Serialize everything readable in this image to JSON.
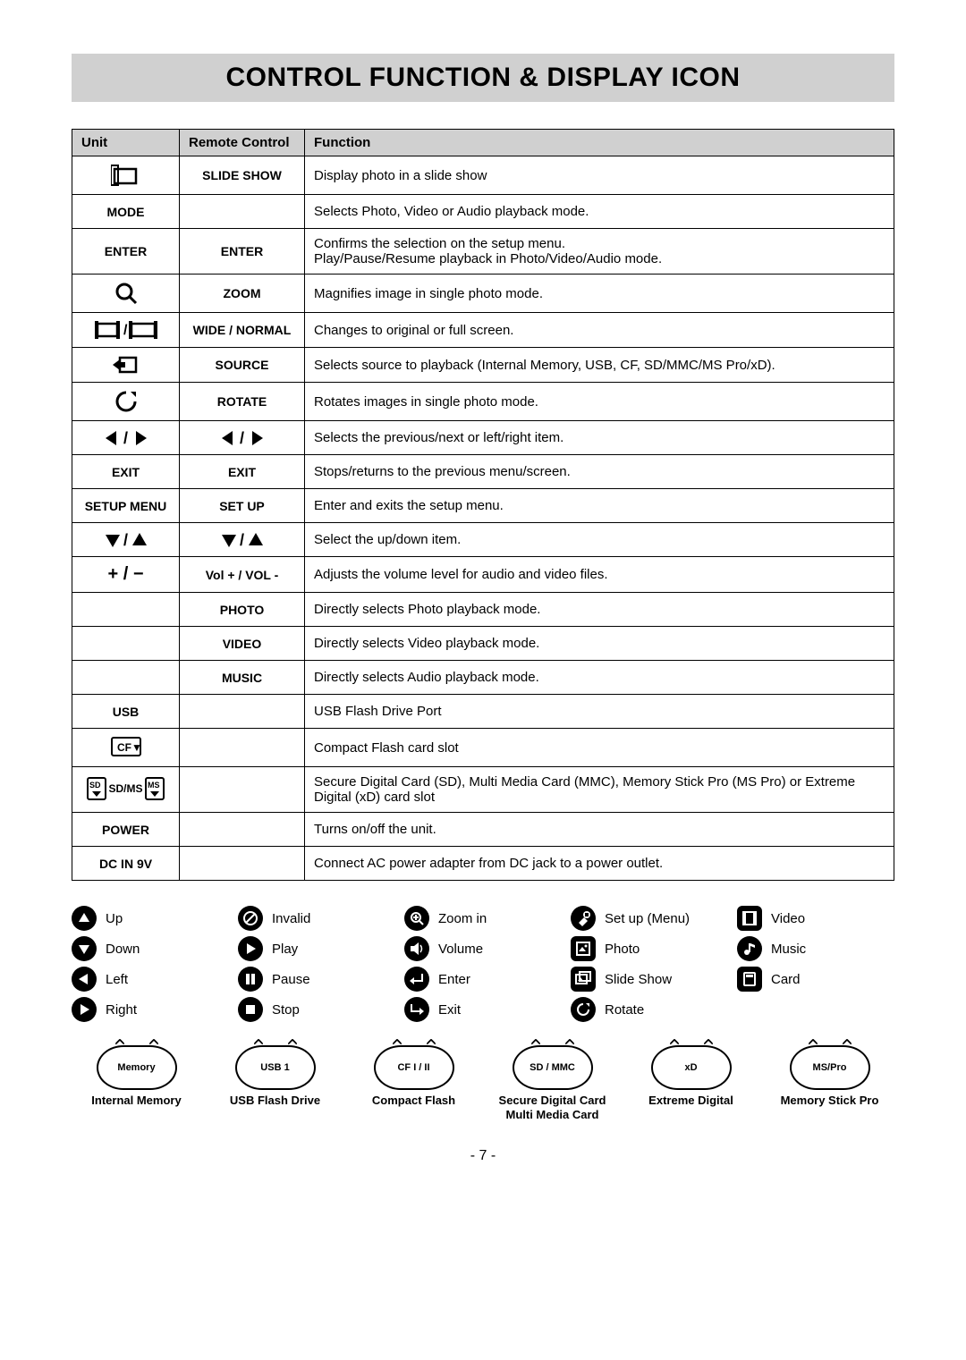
{
  "title": "CONTROL FUNCTION & DISPLAY ICON",
  "table": {
    "headers": [
      "Unit",
      "Remote Control",
      "Function"
    ],
    "rows": [
      {
        "unit_icon": "slideshow",
        "unit": "",
        "remote": "SLIDE SHOW",
        "fn": "Display photo in a slide show"
      },
      {
        "unit": "MODE",
        "remote": "",
        "fn": "Selects Photo, Video or Audio playback mode."
      },
      {
        "unit": "ENTER",
        "remote": "ENTER",
        "fn": "Confirms the selection on the setup menu.\nPlay/Pause/Resume playback in Photo/Video/Audio mode."
      },
      {
        "unit_icon": "magnify",
        "unit": "",
        "remote": "ZOOM",
        "fn": "Magnifies image in single photo mode."
      },
      {
        "unit_icon": "widenormal",
        "unit": "",
        "remote": "WIDE / NORMAL",
        "fn": "Changes to original or full screen."
      },
      {
        "unit_icon": "source",
        "unit": "",
        "remote": "SOURCE",
        "fn": "Selects source to playback (Internal Memory, USB, CF, SD/MMC/MS Pro/xD)."
      },
      {
        "unit_icon": "rotate",
        "unit": "",
        "remote": "ROTATE",
        "fn": "Rotates images in single photo mode."
      },
      {
        "unit_icon": "lr",
        "unit": "",
        "remote_icon": "lr",
        "remote": "",
        "fn": "Selects the previous/next or left/right item."
      },
      {
        "unit": "EXIT",
        "remote": "EXIT",
        "fn": "Stops/returns to the previous menu/screen."
      },
      {
        "unit": "SETUP MENU",
        "remote": "SET UP",
        "fn": "Enter and exits the setup menu."
      },
      {
        "unit_icon": "ud",
        "unit": "",
        "remote_icon": "ud",
        "remote": "",
        "fn": "Select the up/down item."
      },
      {
        "unit_icon": "plusminus",
        "unit": "",
        "remote": "Vol + / VOL -",
        "fn": "Adjusts the volume level for audio and video files."
      },
      {
        "unit": "",
        "remote": "PHOTO",
        "fn": "Directly selects Photo playback mode."
      },
      {
        "unit": "",
        "remote": "VIDEO",
        "fn": "Directly selects Video playback mode."
      },
      {
        "unit": "",
        "remote": "MUSIC",
        "fn": "Directly selects Audio playback mode."
      },
      {
        "unit": "USB",
        "remote": "",
        "fn": "USB Flash Drive Port"
      },
      {
        "unit_icon": "cf",
        "unit": "",
        "remote": "",
        "fn": "Compact Flash card slot"
      },
      {
        "unit_icon": "sdms",
        "unit": "",
        "remote": "",
        "fn": "Secure Digital Card (SD), Multi Media Card (MMC), Memory Stick Pro (MS Pro) or Extreme Digital (xD) card slot"
      },
      {
        "unit": "POWER",
        "remote": "",
        "fn": "Turns on/off the unit."
      },
      {
        "unit": "DC IN 9V",
        "remote": "",
        "fn": "Connect AC power adapter from DC jack to a power outlet."
      }
    ]
  },
  "legend": [
    {
      "icon": "up",
      "label": "Up"
    },
    {
      "icon": "invalid",
      "label": "Invalid"
    },
    {
      "icon": "zoomin",
      "label": "Zoom in"
    },
    {
      "icon": "setup",
      "label": "Set up (Menu)"
    },
    {
      "icon": "video",
      "label": "Video",
      "square": true
    },
    {
      "icon": "down",
      "label": "Down"
    },
    {
      "icon": "play",
      "label": "Play"
    },
    {
      "icon": "volume",
      "label": "Volume"
    },
    {
      "icon": "photo",
      "label": "Photo",
      "square": true
    },
    {
      "icon": "music",
      "label": "Music"
    },
    {
      "icon": "left",
      "label": "Left"
    },
    {
      "icon": "pause",
      "label": "Pause"
    },
    {
      "icon": "enter",
      "label": "Enter"
    },
    {
      "icon": "slideshow2",
      "label": "Slide Show",
      "square": true
    },
    {
      "icon": "card",
      "label": "Card",
      "square": true
    },
    {
      "icon": "right",
      "label": "Right"
    },
    {
      "icon": "stop",
      "label": "Stop"
    },
    {
      "icon": "exit",
      "label": "Exit"
    },
    {
      "icon": "rotate2",
      "label": "Rotate"
    },
    {
      "icon": "",
      "label": ""
    }
  ],
  "cards": [
    {
      "inner": "Memory",
      "label": "Internal Memory"
    },
    {
      "inner": "USB 1",
      "label": "USB Flash Drive"
    },
    {
      "inner": "CF I / II",
      "label": "Compact Flash"
    },
    {
      "inner": "SD / MMC",
      "label": "Secure Digital Card\nMulti Media Card"
    },
    {
      "inner": "xD",
      "label": "Extreme Digital"
    },
    {
      "inner": "MS/Pro",
      "label": "Memory Stick Pro"
    }
  ],
  "page_number": "- 7 -",
  "colors": {
    "header_bg": "#d0d0d0",
    "border": "#000000",
    "text": "#000000",
    "page_bg": "#ffffff"
  }
}
